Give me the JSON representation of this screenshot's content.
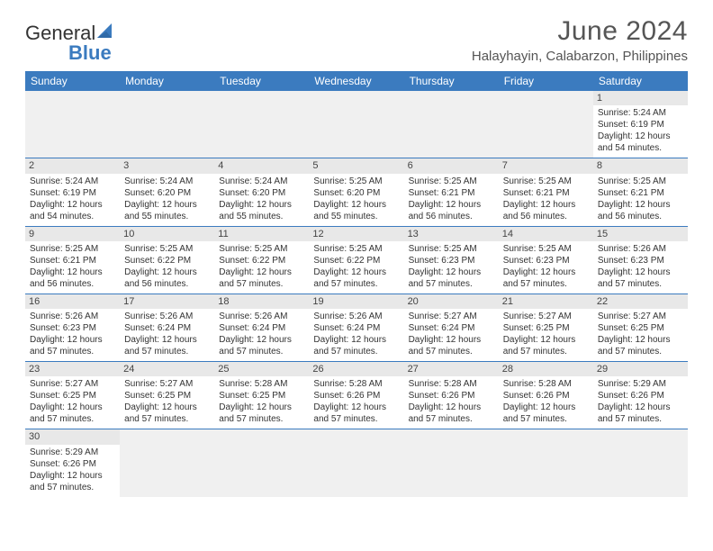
{
  "logo": {
    "text1": "General",
    "text2": "Blue"
  },
  "title": "June 2024",
  "location": "Halayhayin, Calabarzon, Philippines",
  "colors": {
    "header_bg": "#3b7bbf",
    "header_text": "#ffffff",
    "daynum_bg": "#e8e8e8",
    "border": "#3b7bbf",
    "text": "#333333",
    "title_text": "#555555"
  },
  "typography": {
    "title_fontsize": 30,
    "location_fontsize": 15,
    "weekday_fontsize": 12,
    "daynum_fontsize": 11,
    "body_fontsize": 10
  },
  "weekdays": [
    "Sunday",
    "Monday",
    "Tuesday",
    "Wednesday",
    "Thursday",
    "Friday",
    "Saturday"
  ],
  "weeks": [
    [
      {
        "n": "",
        "lines": []
      },
      {
        "n": "",
        "lines": []
      },
      {
        "n": "",
        "lines": []
      },
      {
        "n": "",
        "lines": []
      },
      {
        "n": "",
        "lines": []
      },
      {
        "n": "",
        "lines": []
      },
      {
        "n": "1",
        "lines": [
          "Sunrise: 5:24 AM",
          "Sunset: 6:19 PM",
          "Daylight: 12 hours",
          "and 54 minutes."
        ]
      }
    ],
    [
      {
        "n": "2",
        "lines": [
          "Sunrise: 5:24 AM",
          "Sunset: 6:19 PM",
          "Daylight: 12 hours",
          "and 54 minutes."
        ]
      },
      {
        "n": "3",
        "lines": [
          "Sunrise: 5:24 AM",
          "Sunset: 6:20 PM",
          "Daylight: 12 hours",
          "and 55 minutes."
        ]
      },
      {
        "n": "4",
        "lines": [
          "Sunrise: 5:24 AM",
          "Sunset: 6:20 PM",
          "Daylight: 12 hours",
          "and 55 minutes."
        ]
      },
      {
        "n": "5",
        "lines": [
          "Sunrise: 5:25 AM",
          "Sunset: 6:20 PM",
          "Daylight: 12 hours",
          "and 55 minutes."
        ]
      },
      {
        "n": "6",
        "lines": [
          "Sunrise: 5:25 AM",
          "Sunset: 6:21 PM",
          "Daylight: 12 hours",
          "and 56 minutes."
        ]
      },
      {
        "n": "7",
        "lines": [
          "Sunrise: 5:25 AM",
          "Sunset: 6:21 PM",
          "Daylight: 12 hours",
          "and 56 minutes."
        ]
      },
      {
        "n": "8",
        "lines": [
          "Sunrise: 5:25 AM",
          "Sunset: 6:21 PM",
          "Daylight: 12 hours",
          "and 56 minutes."
        ]
      }
    ],
    [
      {
        "n": "9",
        "lines": [
          "Sunrise: 5:25 AM",
          "Sunset: 6:21 PM",
          "Daylight: 12 hours",
          "and 56 minutes."
        ]
      },
      {
        "n": "10",
        "lines": [
          "Sunrise: 5:25 AM",
          "Sunset: 6:22 PM",
          "Daylight: 12 hours",
          "and 56 minutes."
        ]
      },
      {
        "n": "11",
        "lines": [
          "Sunrise: 5:25 AM",
          "Sunset: 6:22 PM",
          "Daylight: 12 hours",
          "and 57 minutes."
        ]
      },
      {
        "n": "12",
        "lines": [
          "Sunrise: 5:25 AM",
          "Sunset: 6:22 PM",
          "Daylight: 12 hours",
          "and 57 minutes."
        ]
      },
      {
        "n": "13",
        "lines": [
          "Sunrise: 5:25 AM",
          "Sunset: 6:23 PM",
          "Daylight: 12 hours",
          "and 57 minutes."
        ]
      },
      {
        "n": "14",
        "lines": [
          "Sunrise: 5:25 AM",
          "Sunset: 6:23 PM",
          "Daylight: 12 hours",
          "and 57 minutes."
        ]
      },
      {
        "n": "15",
        "lines": [
          "Sunrise: 5:26 AM",
          "Sunset: 6:23 PM",
          "Daylight: 12 hours",
          "and 57 minutes."
        ]
      }
    ],
    [
      {
        "n": "16",
        "lines": [
          "Sunrise: 5:26 AM",
          "Sunset: 6:23 PM",
          "Daylight: 12 hours",
          "and 57 minutes."
        ]
      },
      {
        "n": "17",
        "lines": [
          "Sunrise: 5:26 AM",
          "Sunset: 6:24 PM",
          "Daylight: 12 hours",
          "and 57 minutes."
        ]
      },
      {
        "n": "18",
        "lines": [
          "Sunrise: 5:26 AM",
          "Sunset: 6:24 PM",
          "Daylight: 12 hours",
          "and 57 minutes."
        ]
      },
      {
        "n": "19",
        "lines": [
          "Sunrise: 5:26 AM",
          "Sunset: 6:24 PM",
          "Daylight: 12 hours",
          "and 57 minutes."
        ]
      },
      {
        "n": "20",
        "lines": [
          "Sunrise: 5:27 AM",
          "Sunset: 6:24 PM",
          "Daylight: 12 hours",
          "and 57 minutes."
        ]
      },
      {
        "n": "21",
        "lines": [
          "Sunrise: 5:27 AM",
          "Sunset: 6:25 PM",
          "Daylight: 12 hours",
          "and 57 minutes."
        ]
      },
      {
        "n": "22",
        "lines": [
          "Sunrise: 5:27 AM",
          "Sunset: 6:25 PM",
          "Daylight: 12 hours",
          "and 57 minutes."
        ]
      }
    ],
    [
      {
        "n": "23",
        "lines": [
          "Sunrise: 5:27 AM",
          "Sunset: 6:25 PM",
          "Daylight: 12 hours",
          "and 57 minutes."
        ]
      },
      {
        "n": "24",
        "lines": [
          "Sunrise: 5:27 AM",
          "Sunset: 6:25 PM",
          "Daylight: 12 hours",
          "and 57 minutes."
        ]
      },
      {
        "n": "25",
        "lines": [
          "Sunrise: 5:28 AM",
          "Sunset: 6:25 PM",
          "Daylight: 12 hours",
          "and 57 minutes."
        ]
      },
      {
        "n": "26",
        "lines": [
          "Sunrise: 5:28 AM",
          "Sunset: 6:26 PM",
          "Daylight: 12 hours",
          "and 57 minutes."
        ]
      },
      {
        "n": "27",
        "lines": [
          "Sunrise: 5:28 AM",
          "Sunset: 6:26 PM",
          "Daylight: 12 hours",
          "and 57 minutes."
        ]
      },
      {
        "n": "28",
        "lines": [
          "Sunrise: 5:28 AM",
          "Sunset: 6:26 PM",
          "Daylight: 12 hours",
          "and 57 minutes."
        ]
      },
      {
        "n": "29",
        "lines": [
          "Sunrise: 5:29 AM",
          "Sunset: 6:26 PM",
          "Daylight: 12 hours",
          "and 57 minutes."
        ]
      }
    ],
    [
      {
        "n": "30",
        "lines": [
          "Sunrise: 5:29 AM",
          "Sunset: 6:26 PM",
          "Daylight: 12 hours",
          "and 57 minutes."
        ]
      },
      {
        "n": "",
        "lines": []
      },
      {
        "n": "",
        "lines": []
      },
      {
        "n": "",
        "lines": []
      },
      {
        "n": "",
        "lines": []
      },
      {
        "n": "",
        "lines": []
      },
      {
        "n": "",
        "lines": []
      }
    ]
  ]
}
